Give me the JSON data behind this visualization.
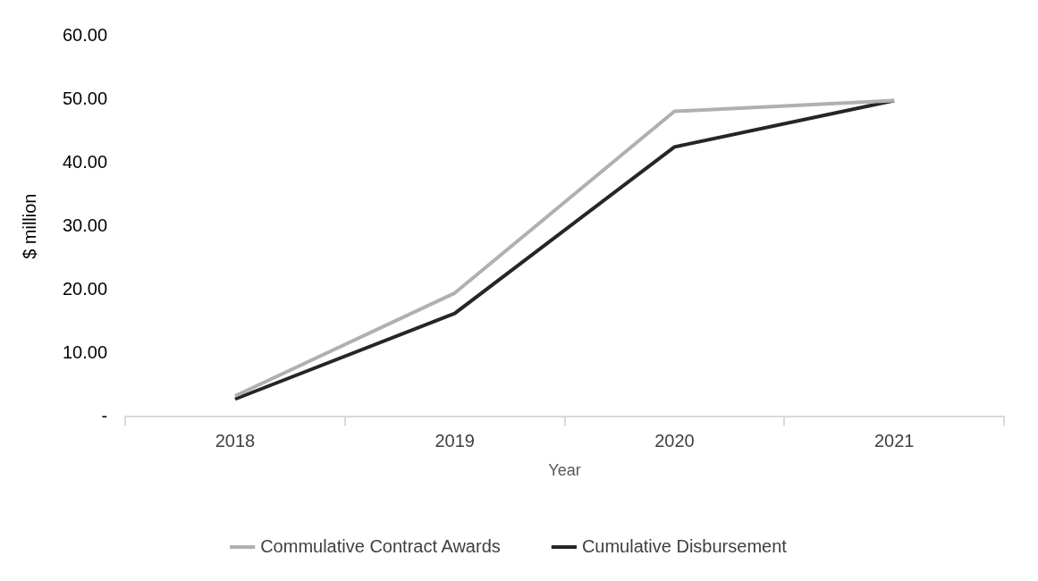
{
  "chart_data": {
    "type": "line",
    "xlabel": "Year",
    "ylabel": "$ million",
    "categories": [
      "2018",
      "2019",
      "2020",
      "2021"
    ],
    "series": [
      {
        "name": "Commulative Contract Awards",
        "color": "#b0b0b0",
        "values": [
          3.3,
          19.5,
          48.1,
          49.8
        ]
      },
      {
        "name": "Cumulative Disbursement",
        "color": "#262626",
        "values": [
          2.8,
          16.3,
          42.5,
          49.8
        ]
      }
    ],
    "ylim": [
      0,
      60
    ],
    "yticks": [
      {
        "value": 0,
        "label": "-"
      },
      {
        "value": 10,
        "label": "10.00"
      },
      {
        "value": 20,
        "label": "20.00"
      },
      {
        "value": 30,
        "label": "30.00"
      },
      {
        "value": 40,
        "label": "40.00"
      },
      {
        "value": 50,
        "label": "50.00"
      },
      {
        "value": 60,
        "label": "60.00"
      }
    ],
    "grid": false,
    "legend": "bottom",
    "marker": "none",
    "line_style": "solid"
  }
}
